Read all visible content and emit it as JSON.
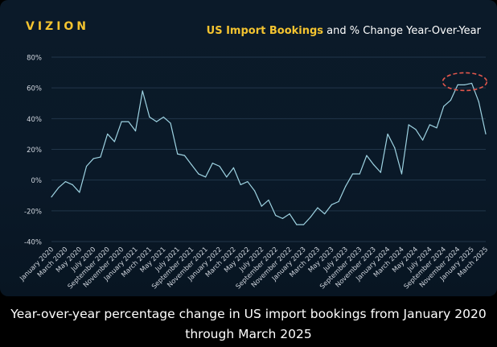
{
  "brand": {
    "logo_text": "VIZION"
  },
  "colors": {
    "accent": "#f4c430",
    "line": "#9ed3e2",
    "grid": "#22364a",
    "axis_text": "#d0d6de",
    "highlight": "#e2574c",
    "background": "#0b1a29"
  },
  "caption": "Year-over-year percentage change in US import bookings from January 2020 through March 2025",
  "chart_data": {
    "type": "line",
    "title": "US Import Bookings and % Change Year-Over-Year",
    "title_highlight": "US Import Bookings",
    "title_rest": " and % Change Year-Over-Year",
    "xlabel": "",
    "ylabel": "",
    "ylim": [
      -40,
      80
    ],
    "yticks": [
      -40,
      -20,
      0,
      20,
      40,
      60,
      80
    ],
    "ytick_labels": [
      "-40%",
      "-20%",
      "0%",
      "20%",
      "40%",
      "60%",
      "80%"
    ],
    "grid": true,
    "x": [
      "January 2020",
      "February 2020",
      "March 2020",
      "April 2020",
      "May 2020",
      "June 2020",
      "July 2020",
      "August 2020",
      "September 2020",
      "October 2020",
      "November 2020",
      "December 2020",
      "January 2021",
      "February 2021",
      "March 2021",
      "April 2021",
      "May 2021",
      "June 2021",
      "July 2021",
      "August 2021",
      "September 2021",
      "October 2021",
      "November 2021",
      "December 2021",
      "January 2022",
      "February 2022",
      "March 2022",
      "April 2022",
      "May 2022",
      "June 2022",
      "July 2022",
      "August 2022",
      "September 2022",
      "October 2022",
      "November 2022",
      "December 2022",
      "January 2023",
      "February 2023",
      "March 2023",
      "April 2023",
      "May 2023",
      "June 2023",
      "July 2023",
      "August 2023",
      "September 2023",
      "October 2023",
      "November 2023",
      "December 2023",
      "January 2024",
      "February 2024",
      "March 2024",
      "April 2024",
      "May 2024",
      "June 2024",
      "July 2024",
      "August 2024",
      "September 2024",
      "October 2024",
      "November 2024",
      "December 2024",
      "January 2025",
      "February 2025",
      "March 2025"
    ],
    "xtick_labels": [
      "January 2020",
      "March 2020",
      "May 2020",
      "July 2020",
      "September 2020",
      "November 2020",
      "January 2021",
      "March 2021",
      "May 2021",
      "July 2021",
      "September 2021",
      "November 2021",
      "January 2022",
      "March 2022",
      "May 2022",
      "July 2022",
      "September 2022",
      "November 2022",
      "January 2023",
      "March 2023",
      "May 2023",
      "July 2023",
      "September 2023",
      "November 2023",
      "January 2024",
      "March 2024",
      "May 2024",
      "July 2024",
      "September 2024",
      "November 2024",
      "January 2025",
      "March 2025"
    ],
    "series": [
      {
        "name": "% Change Year-Over-Year",
        "values": [
          -11,
          -5,
          -1,
          -3,
          -8,
          9,
          14,
          15,
          30,
          25,
          38,
          38,
          32,
          58,
          41,
          38,
          41,
          37,
          17,
          16,
          10,
          4,
          2,
          11,
          9,
          2,
          8,
          -3,
          -1,
          -7,
          -17,
          -13,
          -23,
          -25,
          -22,
          -29,
          -29,
          -24,
          -18,
          -22,
          -16,
          -14,
          -4,
          4,
          4,
          16,
          10,
          5,
          30,
          21,
          4,
          36,
          33,
          26,
          36,
          34,
          48,
          52,
          62,
          62,
          63,
          51,
          30
        ]
      }
    ],
    "annotations": [
      {
        "type": "ellipse-highlight",
        "label": "",
        "x_range": [
          "October 2024",
          "February 2025"
        ],
        "y": 63
      }
    ]
  }
}
